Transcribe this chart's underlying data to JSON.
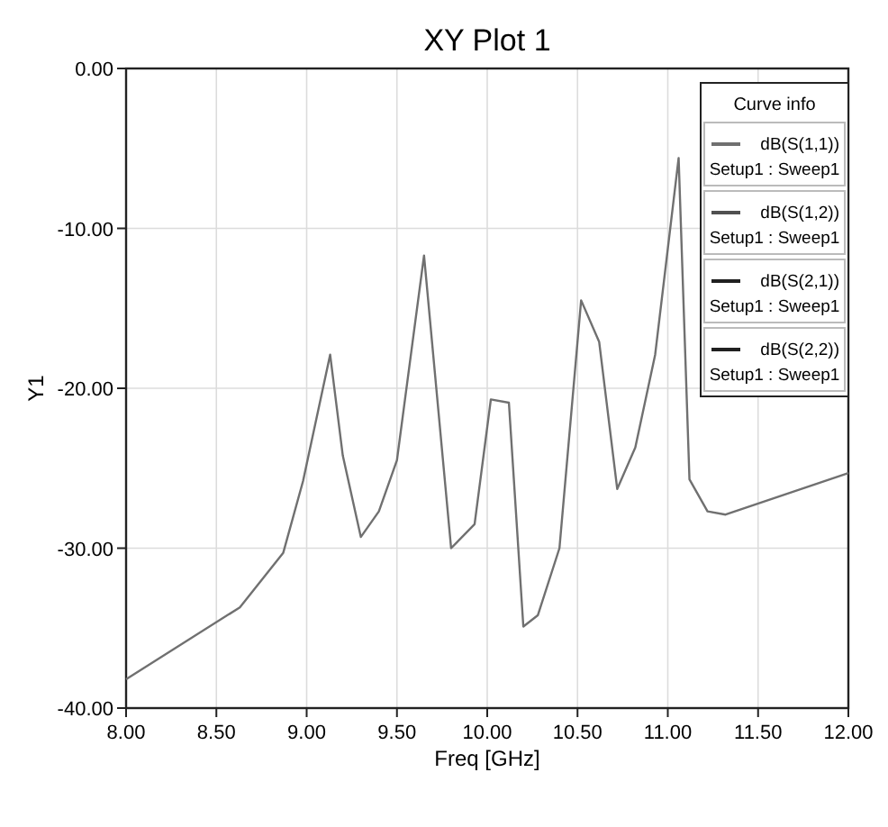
{
  "chart_data": {
    "type": "line",
    "title": "XY Plot 1",
    "xlabel": "Freq [GHz]",
    "ylabel": "Y1",
    "legend_title": "Curve info",
    "xlim": [
      8,
      12
    ],
    "xticks": [
      {
        "value": 8,
        "label": "8.00"
      },
      {
        "value": 8.5,
        "label": "8.50"
      },
      {
        "value": 9,
        "label": "9.00"
      },
      {
        "value": 9.5,
        "label": "9.50"
      },
      {
        "value": 10,
        "label": "10.00"
      },
      {
        "value": 10.5,
        "label": "10.50"
      },
      {
        "value": 11,
        "label": "11.00"
      },
      {
        "value": 11.5,
        "label": "11.50"
      },
      {
        "value": 12,
        "label": "12.00"
      }
    ],
    "ylim": [
      -40,
      0
    ],
    "yticks": [
      {
        "value": -40,
        "label": "-40.00"
      },
      {
        "value": -30,
        "label": "-30.00"
      },
      {
        "value": -20,
        "label": "-20.00"
      },
      {
        "value": -10,
        "label": "-10.00"
      },
      {
        "value": 0,
        "label": "0.00"
      }
    ],
    "x": [
      8.0,
      8.63,
      8.87,
      8.98,
      9.13,
      9.2,
      9.3,
      9.4,
      9.5,
      9.65,
      9.8,
      9.93,
      10.02,
      10.12,
      10.2,
      10.28,
      10.4,
      10.52,
      10.62,
      10.72,
      10.82,
      10.93,
      11.06,
      11.12,
      11.22,
      11.32,
      12.0
    ],
    "series": [
      {
        "name": "dB(S(1,1))\nSetup1 : Sweep1",
        "color": "#707070",
        "values": [
          -38.2,
          -33.7,
          -30.3,
          -25.8,
          -17.9,
          -24.2,
          -29.3,
          -27.7,
          -24.5,
          -11.7,
          -30,
          -28.5,
          -20.7,
          -20.9,
          -34.9,
          -34.2,
          -30,
          -14.5,
          -17.1,
          -26.3,
          -23.7,
          -17.9,
          -5.6,
          -25.7,
          -27.7,
          -27.9,
          -25.3
        ]
      },
      {
        "name": "dB(S(1,2))\nSetup1 : Sweep1",
        "color": "#505050",
        "values": [
          null,
          null,
          null,
          null,
          null,
          null,
          null,
          null,
          null,
          null,
          null,
          null,
          null,
          null,
          null,
          null,
          null,
          null,
          null,
          null,
          null,
          null,
          null,
          null,
          null,
          null,
          null
        ]
      },
      {
        "name": "dB(S(2,1))\nSetup1 : Sweep1",
        "color": "#202020",
        "values": [
          null,
          null,
          null,
          null,
          null,
          null,
          null,
          null,
          null,
          null,
          null,
          null,
          null,
          null,
          null,
          null,
          null,
          null,
          null,
          null,
          null,
          null,
          null,
          null,
          null,
          null,
          null
        ]
      },
      {
        "name": "dB(S(2,2))\nSetup1 : Sweep1",
        "color": "#202020",
        "values": [
          null,
          null,
          null,
          null,
          null,
          null,
          null,
          null,
          null,
          null,
          null,
          null,
          null,
          null,
          null,
          null,
          null,
          null,
          null,
          null,
          null,
          null,
          null,
          null,
          null,
          null,
          null
        ]
      }
    ],
    "grid": true,
    "legend": "top right",
    "marker": "none",
    "line_style": "solid"
  }
}
